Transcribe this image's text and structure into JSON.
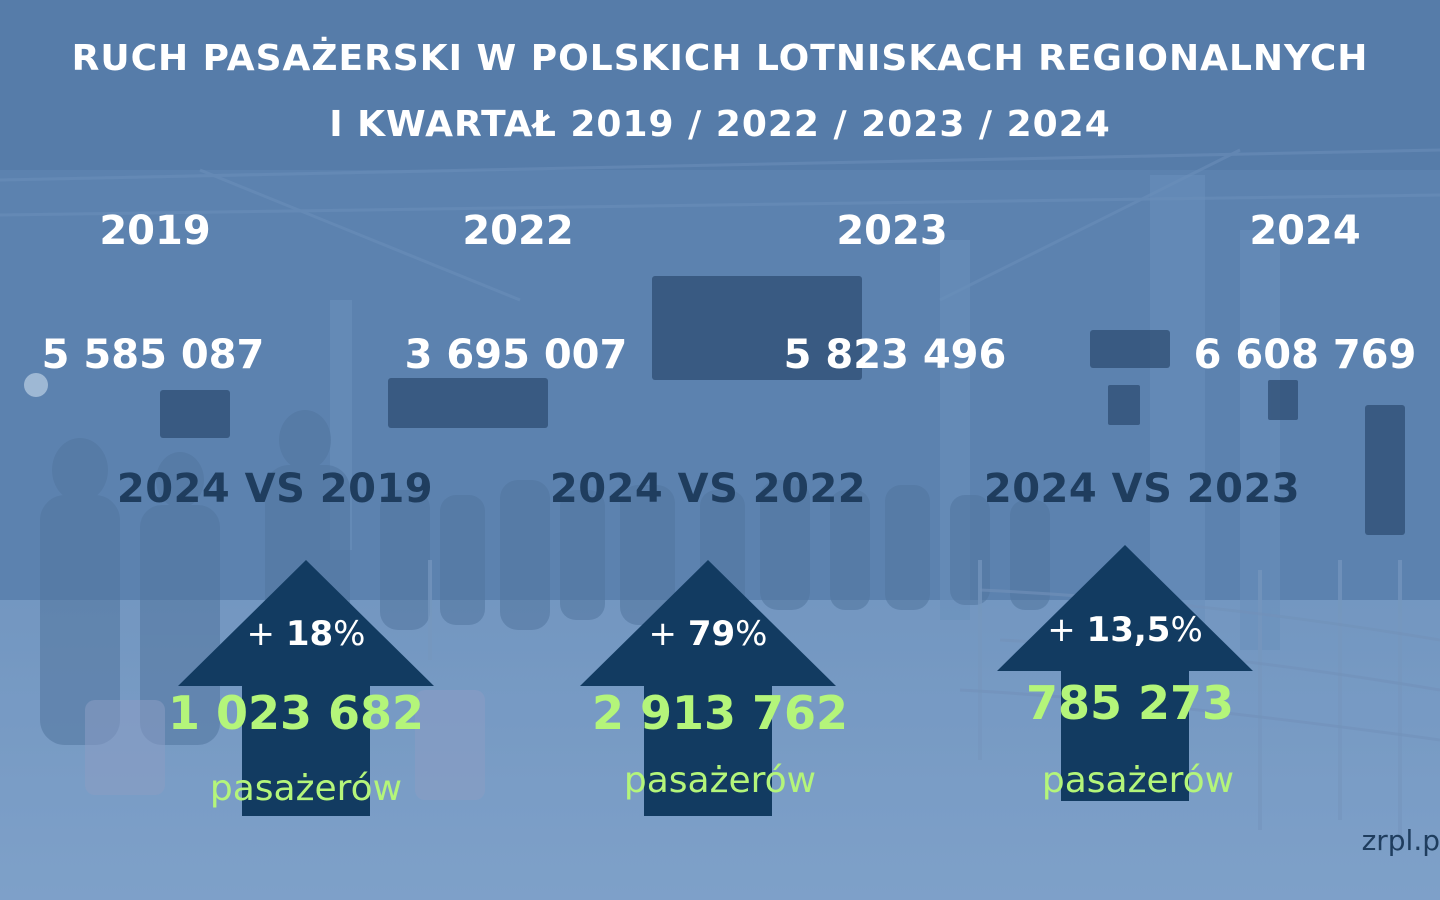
{
  "title": {
    "line1": "RUCH PASAŻERSKI W POLSKICH LOTNISKACH REGIONALNYCH",
    "line2": "I KWARTAŁ 2019 / 2022 / 2023 / 2024"
  },
  "years": [
    {
      "label": "2019",
      "passengers": "5 585 087"
    },
    {
      "label": "2022",
      "passengers": "3 695 007"
    },
    {
      "label": "2023",
      "passengers": "5 823 496"
    },
    {
      "label": "2024",
      "passengers": "6 608 769"
    }
  ],
  "comparisons": [
    {
      "label": "2024 VS 2019",
      "change_sign": "+ ",
      "change_value": "18",
      "change_unit": "%",
      "difference": "1 023 682",
      "unit": "pasażerów"
    },
    {
      "label": "2024 VS 2022",
      "change_sign": "+ ",
      "change_value": "79",
      "change_unit": "%",
      "difference": "2 913 762",
      "unit": "pasażerów"
    },
    {
      "label": "2024 VS 2023",
      "change_sign": "+ ",
      "change_value": "13,5",
      "change_unit": "%",
      "difference": "785 273",
      "unit": "pasażerów"
    }
  ],
  "source": "zrpl.p",
  "colors": {
    "background_overlay": "#5f86b2",
    "arrow": "#123b61",
    "highlight_green": "#b4f57a",
    "dark_text": "#1f3d5e",
    "white_text": "#ffffff"
  },
  "background_icon": "airport-terminal-photo"
}
